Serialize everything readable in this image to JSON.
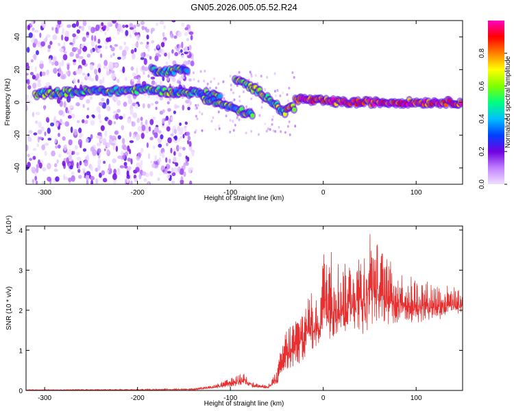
{
  "title": "GN05.2026.005.05.52.R24",
  "chart_data": [
    {
      "type": "heatmap",
      "title": "GN05.2026.005.05.52.R24",
      "xlabel": "Height of straight line (km)",
      "ylabel": "Frequency (Hz)",
      "xlim": [
        -320,
        150
      ],
      "ylim": [
        -50,
        50
      ],
      "x_ticks": [
        "-300",
        "-200",
        "-100",
        "0",
        "100"
      ],
      "x_tick_values": [
        -300,
        -200,
        -100,
        0,
        100
      ],
      "y_ticks": [
        "-40",
        "-20",
        "0",
        "20",
        "40"
      ],
      "y_tick_values": [
        -40,
        -20,
        0,
        20,
        40
      ],
      "colorbar": {
        "label": "Normalized spectral amplitude",
        "range": [
          0,
          1
        ],
        "ticks": [
          "0.0",
          "0.2",
          "0.4",
          "0.6",
          "0.8"
        ],
        "tick_values": [
          0.0,
          0.2,
          0.4,
          0.6,
          0.8
        ],
        "colors": [
          "#f0e0ff",
          "#c080ff",
          "#7000e0",
          "#0040ff",
          "#00c0ff",
          "#00ff80",
          "#80ff00",
          "#ffff00",
          "#ff8000",
          "#ff0000",
          "#ff00c0"
        ]
      },
      "tracks": [
        {
          "points": [
            [
              -310,
              5
            ],
            [
              -280,
              6
            ],
            [
              -250,
              7
            ],
            [
              -220,
              7
            ],
            [
              -190,
              8
            ],
            [
              -160,
              6
            ],
            [
              -140,
              6
            ],
            [
              -120,
              5
            ],
            [
              -110,
              3
            ]
          ],
          "amplitude": 0.5
        },
        {
          "points": [
            [
              -185,
              20
            ],
            [
              -170,
              19
            ],
            [
              -155,
              20
            ],
            [
              -145,
              20
            ]
          ],
          "amplitude": 0.45
        },
        {
          "points": [
            [
              -130,
              3
            ],
            [
              -115,
              0
            ],
            [
              -100,
              -3
            ],
            [
              -85,
              -6
            ],
            [
              -75,
              -8
            ]
          ],
          "amplitude": 0.5
        },
        {
          "points": [
            [
              -95,
              14
            ],
            [
              -80,
              10
            ],
            [
              -70,
              7
            ],
            [
              -60,
              3
            ],
            [
              -50,
              -2
            ],
            [
              -45,
              -5
            ],
            [
              -40,
              -8
            ]
          ],
          "amplitude": 0.55
        },
        {
          "points": [
            [
              -40,
              -3
            ],
            [
              -30,
              -3
            ]
          ],
          "amplitude": 0.75
        },
        {
          "points": [
            [
              -30,
              2
            ],
            [
              -20,
              2
            ],
            [
              -10,
              1
            ],
            [
              0,
              1
            ],
            [
              20,
              0
            ],
            [
              50,
              0
            ],
            [
              80,
              0
            ],
            [
              110,
              0
            ],
            [
              140,
              0
            ],
            [
              150,
              0
            ]
          ],
          "amplitude": 0.9
        }
      ],
      "noise_region": {
        "x_range": [
          -320,
          -140
        ],
        "y_range": [
          -50,
          50
        ]
      }
    },
    {
      "type": "line",
      "xlabel": "Height of straight line (km)",
      "ylabel": "SNR (10 * v/v)",
      "y_multiplier": "(x10⁴)",
      "xlim": [
        -320,
        150
      ],
      "ylim": [
        0,
        4.1
      ],
      "x_ticks": [
        "-300",
        "-200",
        "-100",
        "0",
        "100"
      ],
      "x_tick_values": [
        -300,
        -200,
        -100,
        0,
        100
      ],
      "y_ticks": [
        "0",
        "1",
        "2",
        "3",
        "4"
      ],
      "y_tick_values": [
        0,
        1,
        2,
        3,
        4
      ],
      "color": "#e83030",
      "envelope": [
        {
          "x": -320,
          "low": 0.0,
          "high": 0.02
        },
        {
          "x": -200,
          "low": 0.0,
          "high": 0.03
        },
        {
          "x": -140,
          "low": 0.0,
          "high": 0.05
        },
        {
          "x": -120,
          "low": 0.02,
          "high": 0.12
        },
        {
          "x": -100,
          "low": 0.03,
          "high": 0.3
        },
        {
          "x": -85,
          "low": 0.05,
          "high": 0.45
        },
        {
          "x": -75,
          "low": 0.03,
          "high": 0.2
        },
        {
          "x": -60,
          "low": 0.02,
          "high": 0.12
        },
        {
          "x": -50,
          "low": 0.05,
          "high": 0.5
        },
        {
          "x": -42,
          "low": 0.1,
          "high": 1.5
        },
        {
          "x": -35,
          "low": 0.2,
          "high": 1.7
        },
        {
          "x": -25,
          "low": 0.3,
          "high": 2.0
        },
        {
          "x": -15,
          "low": 0.6,
          "high": 2.5
        },
        {
          "x": -5,
          "low": 0.8,
          "high": 2.2
        },
        {
          "x": 0,
          "low": 0.9,
          "high": 3.5
        },
        {
          "x": 10,
          "low": 0.7,
          "high": 3.55
        },
        {
          "x": 20,
          "low": 0.9,
          "high": 3.1
        },
        {
          "x": 35,
          "low": 1.1,
          "high": 3.4
        },
        {
          "x": 45,
          "low": 0.75,
          "high": 3.6
        },
        {
          "x": 50,
          "low": 1.0,
          "high": 4.1
        },
        {
          "x": 60,
          "low": 1.2,
          "high": 3.6
        },
        {
          "x": 80,
          "low": 1.3,
          "high": 3.0
        },
        {
          "x": 100,
          "low": 1.4,
          "high": 2.8
        },
        {
          "x": 120,
          "low": 1.5,
          "high": 2.7
        },
        {
          "x": 140,
          "low": 1.6,
          "high": 2.6
        },
        {
          "x": 150,
          "low": 1.8,
          "high": 2.5
        }
      ]
    }
  ]
}
